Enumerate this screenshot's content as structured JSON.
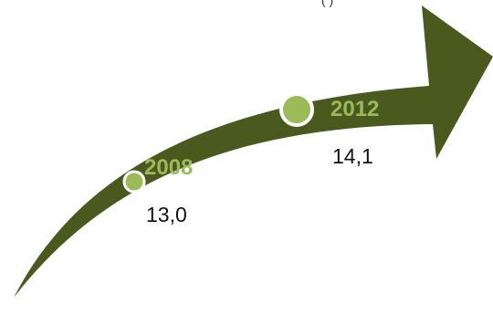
{
  "colors": {
    "arrow": "#4a5a1f",
    "accent": "#9bbb59",
    "marker_ring": "#ffffff",
    "value_text": "#111111"
  },
  "top_cropped_text": "(                  )",
  "milestones": [
    {
      "year": "2008",
      "value": "13,0",
      "marker_size": "small"
    },
    {
      "year": "2012",
      "value": "14,1",
      "marker_size": "large"
    }
  ]
}
